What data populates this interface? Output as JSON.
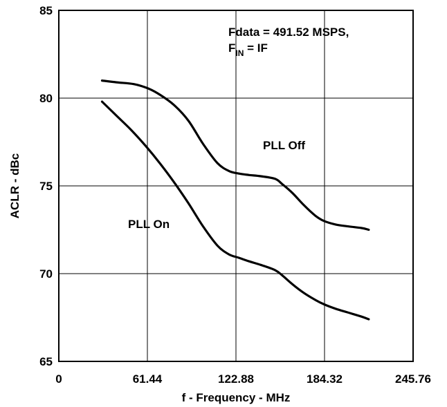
{
  "chart_data": {
    "type": "line",
    "xlabel": "f - Frequency - MHz",
    "ylabel": "ACLR - dBc",
    "xlim": [
      0,
      245.76
    ],
    "ylim": [
      65,
      85
    ],
    "x_ticks": [
      "0",
      "61.44",
      "122.88",
      "184.32",
      "245.76"
    ],
    "y_ticks": [
      "65",
      "70",
      "75",
      "80",
      "85"
    ],
    "grid": true,
    "annotations": [
      {
        "line1": "Fdata = 491.52 MSPS,",
        "line2_main": "F",
        "line2_sub": "IN",
        "line2_rest": " = IF"
      }
    ],
    "series": [
      {
        "label": "PLL Off",
        "x": [
          30,
          40,
          52,
          62,
          70,
          80,
          90,
          100,
          110,
          118,
          125,
          132,
          140,
          150,
          155,
          162,
          170,
          178,
          184,
          192,
          200,
          210,
          215
        ],
        "y": [
          81.0,
          80.9,
          80.8,
          80.55,
          80.2,
          79.6,
          78.7,
          77.4,
          76.3,
          75.85,
          75.7,
          75.62,
          75.55,
          75.4,
          75.1,
          74.6,
          73.9,
          73.3,
          73.0,
          72.8,
          72.7,
          72.6,
          72.5
        ]
      },
      {
        "label": "PLL On",
        "x": [
          30,
          40,
          50,
          60,
          70,
          80,
          90,
          100,
          110,
          118,
          125,
          132,
          140,
          150,
          155,
          162,
          170,
          178,
          184,
          192,
          200,
          210,
          215
        ],
        "y": [
          79.8,
          79.0,
          78.2,
          77.3,
          76.3,
          75.2,
          74.0,
          72.7,
          71.6,
          71.1,
          70.9,
          70.7,
          70.5,
          70.2,
          69.9,
          69.4,
          68.9,
          68.5,
          68.25,
          68.0,
          67.8,
          67.55,
          67.4
        ]
      }
    ]
  }
}
